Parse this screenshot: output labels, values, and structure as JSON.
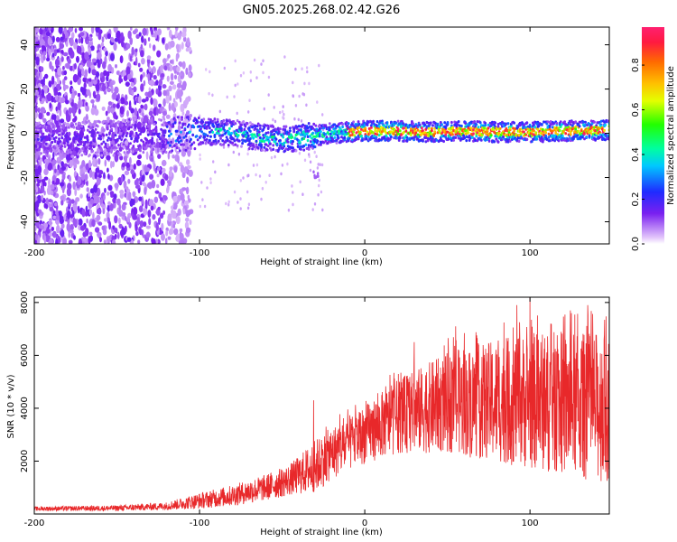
{
  "title": "GN05.2025.268.02.42.G26",
  "colors": {
    "snr_line": "#e8282a",
    "axis": "#000000"
  },
  "chart_data": [
    {
      "type": "heatmap",
      "name": "spectrogram",
      "xlabel": "Height of straight line (km)",
      "ylabel": "Frequency (Hz)",
      "xlim": [
        -200,
        148
      ],
      "ylim": [
        -50,
        48
      ],
      "xticks": [
        {
          "value": -200,
          "label": "-200"
        },
        {
          "value": -100,
          "label": "-100"
        },
        {
          "value": 0,
          "label": "0"
        },
        {
          "value": 100,
          "label": "100"
        }
      ],
      "yticks": [
        {
          "value": -40,
          "label": "-40"
        },
        {
          "value": -20,
          "label": "-20"
        },
        {
          "value": 0,
          "label": "0"
        },
        {
          "value": 20,
          "label": "20"
        },
        {
          "value": 40,
          "label": "40"
        }
      ],
      "ridge": [
        {
          "x": -200,
          "y": -3
        },
        {
          "x": -150,
          "y": -2
        },
        {
          "x": -120,
          "y": -1
        },
        {
          "x": -100,
          "y": 1
        },
        {
          "x": -80,
          "y": 0
        },
        {
          "x": -60,
          "y": -2
        },
        {
          "x": -50,
          "y": -3
        },
        {
          "x": -40,
          "y": -2
        },
        {
          "x": -30,
          "y": -1
        },
        {
          "x": -20,
          "y": 0
        },
        {
          "x": 0,
          "y": 1
        },
        {
          "x": 20,
          "y": 1
        },
        {
          "x": 40,
          "y": 0.5
        },
        {
          "x": 60,
          "y": 1
        },
        {
          "x": 80,
          "y": 0.5
        },
        {
          "x": 100,
          "y": 0.5
        },
        {
          "x": 120,
          "y": 1
        },
        {
          "x": 148,
          "y": 1.5
        }
      ],
      "colorbar": {
        "label": "Normalized spectral amplitude",
        "range": [
          0,
          0.97
        ],
        "ticks": [
          {
            "value": 0.0,
            "label": "0.0"
          },
          {
            "value": 0.2,
            "label": "0.2"
          },
          {
            "value": 0.4,
            "label": "0.4"
          },
          {
            "value": 0.6,
            "label": "0.6"
          },
          {
            "value": 0.8,
            "label": "0.8"
          }
        ]
      }
    },
    {
      "type": "line",
      "name": "snr",
      "xlabel": "Height of straight line (km)",
      "ylabel": "SNR (10 * v/v)",
      "xlim": [
        -200,
        148
      ],
      "ylim": [
        0,
        8200
      ],
      "xticks": [
        {
          "value": -200,
          "label": "-200"
        },
        {
          "value": -100,
          "label": "-100"
        },
        {
          "value": 0,
          "label": "0"
        },
        {
          "value": 100,
          "label": "100"
        }
      ],
      "yticks": [
        {
          "value": 2000,
          "label": "2000"
        },
        {
          "value": 4000,
          "label": "4000"
        },
        {
          "value": 6000,
          "label": "6000"
        },
        {
          "value": 8000,
          "label": "8000"
        }
      ],
      "series": [
        {
          "name": "SNR",
          "envelope": [
            {
              "x": -200,
              "mean": 200,
              "amp": 80
            },
            {
              "x": -150,
              "mean": 220,
              "amp": 110
            },
            {
              "x": -120,
              "mean": 300,
              "amp": 150
            },
            {
              "x": -100,
              "mean": 500,
              "amp": 300
            },
            {
              "x": -80,
              "mean": 700,
              "amp": 400
            },
            {
              "x": -60,
              "mean": 1000,
              "amp": 500
            },
            {
              "x": -45,
              "mean": 1300,
              "amp": 600
            },
            {
              "x": -30,
              "mean": 1800,
              "amp": 1000
            },
            {
              "x": -20,
              "mean": 2300,
              "amp": 1000
            },
            {
              "x": 0,
              "mean": 3000,
              "amp": 1100
            },
            {
              "x": 20,
              "mean": 3700,
              "amp": 1400
            },
            {
              "x": 50,
              "mean": 4200,
              "amp": 1900
            },
            {
              "x": 100,
              "mean": 4300,
              "amp": 2600
            },
            {
              "x": 148,
              "mean": 4000,
              "amp": 2900
            }
          ],
          "peaks": [
            {
              "x": -31,
              "y": 4300
            },
            {
              "x": 30,
              "y": 6500
            },
            {
              "x": 55,
              "y": 7100
            },
            {
              "x": 92,
              "y": 7900
            },
            {
              "x": 100,
              "y": 8200
            },
            {
              "x": 125,
              "y": 7600
            },
            {
              "x": 135,
              "y": 7900
            }
          ]
        }
      ]
    }
  ]
}
